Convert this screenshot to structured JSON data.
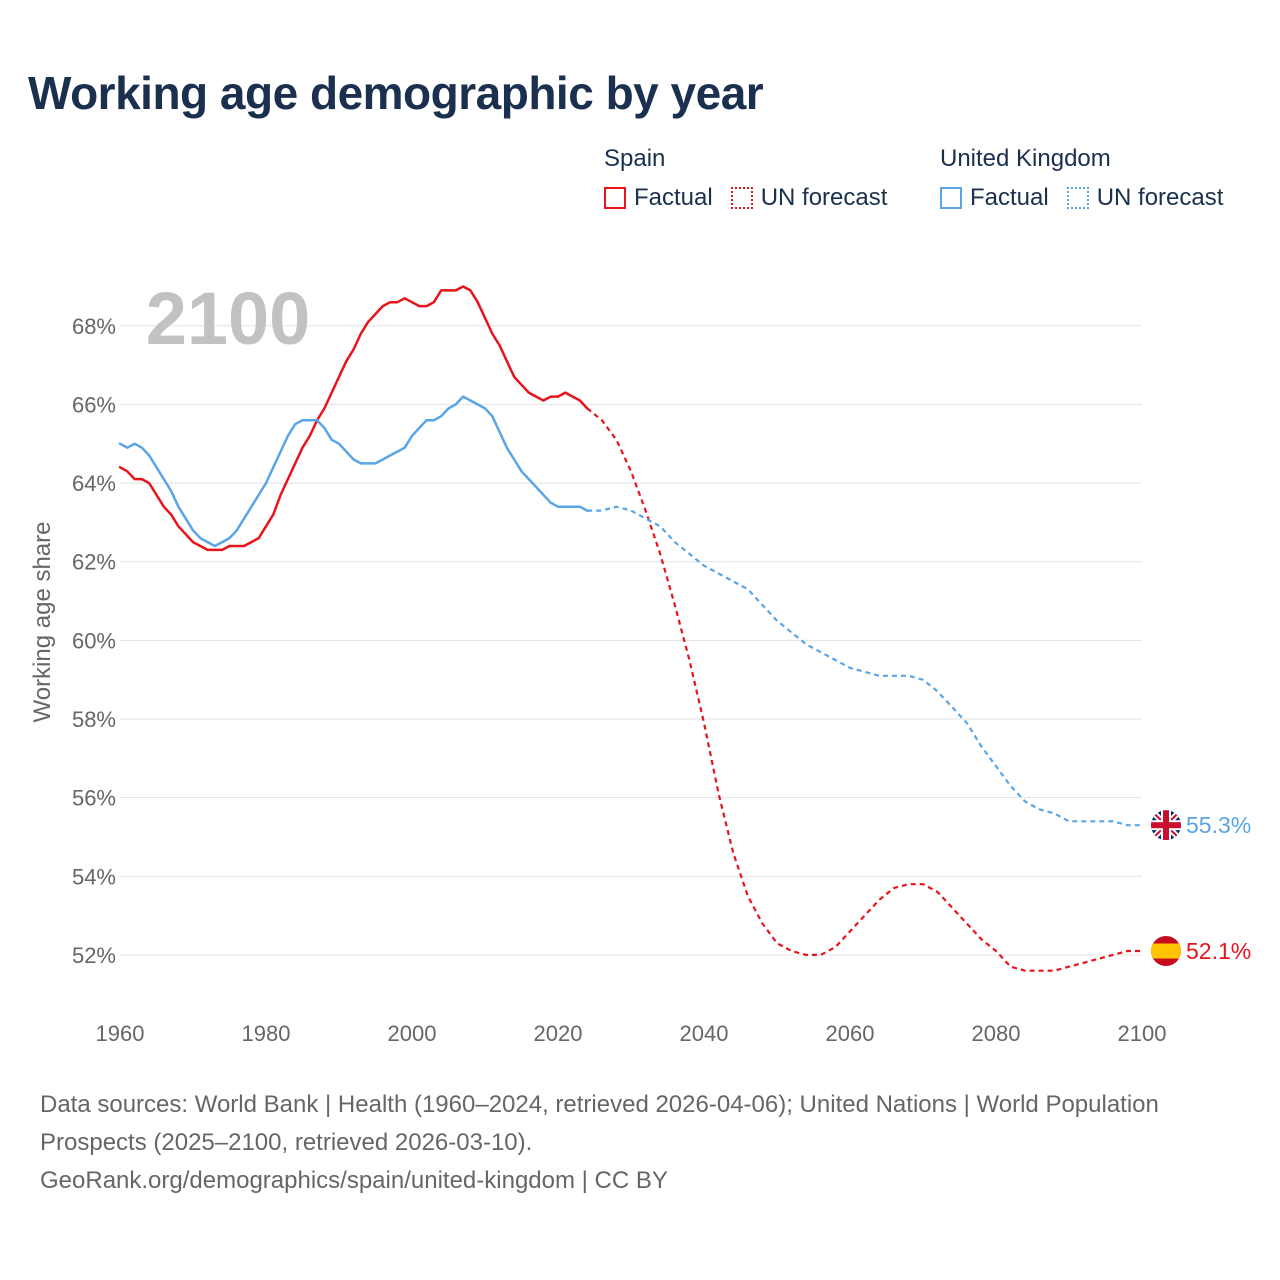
{
  "title": "Working age demographic by year",
  "year_overlay": "2100",
  "legend": {
    "spain": {
      "country": "Spain",
      "factual": "Factual",
      "forecast": "UN forecast",
      "color": "#e8141c"
    },
    "uk": {
      "country": "United Kingdom",
      "factual": "Factual",
      "forecast": "UN forecast",
      "color": "#5aa5e6"
    }
  },
  "footer": {
    "line1": "Data sources: World Bank | Health (1960–2024, retrieved 2026-04-06); United Nations | World Population Prospects (2025–2100, retrieved 2026-03-10).",
    "line2": "GeoRank.org/demographics/spain/united-kingdom | CC BY"
  },
  "chart_data": {
    "type": "line",
    "title": "Working age demographic by year",
    "ylabel": "Working age share",
    "xlabel": "",
    "xlim": [
      1960,
      2100
    ],
    "ylim": [
      50.6,
      69.8
    ],
    "x_ticks": [
      1960,
      1980,
      2000,
      2020,
      2040,
      2060,
      2080,
      2100
    ],
    "x_tick_labels": [
      "1960",
      "1980",
      "2000",
      "2020",
      "2040",
      "2060",
      "2080",
      "2100"
    ],
    "y_ticks": [
      52,
      54,
      56,
      58,
      60,
      62,
      64,
      66,
      68
    ],
    "y_tick_labels": [
      "52%",
      "54%",
      "56%",
      "58%",
      "60%",
      "62%",
      "64%",
      "66%",
      "68%"
    ],
    "grid": true,
    "series": [
      {
        "name": "Spain",
        "flag": "spain-flag",
        "color": "#e8141c",
        "end_label": "52.1%",
        "factual": {
          "x": [
            1960,
            1961,
            1962,
            1963,
            1964,
            1965,
            1966,
            1967,
            1968,
            1969,
            1970,
            1971,
            1972,
            1973,
            1974,
            1975,
            1976,
            1977,
            1978,
            1979,
            1980,
            1981,
            1982,
            1983,
            1984,
            1985,
            1986,
            1987,
            1988,
            1989,
            1990,
            1991,
            1992,
            1993,
            1994,
            1995,
            1996,
            1997,
            1998,
            1999,
            2000,
            2001,
            2002,
            2003,
            2004,
            2005,
            2006,
            2007,
            2008,
            2009,
            2010,
            2011,
            2012,
            2013,
            2014,
            2015,
            2016,
            2017,
            2018,
            2019,
            2020,
            2021,
            2022,
            2023,
            2024
          ],
          "y": [
            64.4,
            64.3,
            64.1,
            64.1,
            64.0,
            63.7,
            63.4,
            63.2,
            62.9,
            62.7,
            62.5,
            62.4,
            62.3,
            62.3,
            62.3,
            62.4,
            62.4,
            62.4,
            62.5,
            62.6,
            62.9,
            63.2,
            63.7,
            64.1,
            64.5,
            64.9,
            65.2,
            65.6,
            65.9,
            66.3,
            66.7,
            67.1,
            67.4,
            67.8,
            68.1,
            68.3,
            68.5,
            68.6,
            68.6,
            68.7,
            68.6,
            68.5,
            68.5,
            68.6,
            68.9,
            68.9,
            68.9,
            69.0,
            68.9,
            68.6,
            68.2,
            67.8,
            67.5,
            67.1,
            66.7,
            66.5,
            66.3,
            66.2,
            66.1,
            66.2,
            66.2,
            66.3,
            66.2,
            66.1,
            65.9
          ]
        },
        "forecast": {
          "x": [
            2024,
            2026,
            2028,
            2030,
            2032,
            2034,
            2036,
            2038,
            2040,
            2042,
            2044,
            2046,
            2048,
            2050,
            2052,
            2054,
            2056,
            2058,
            2060,
            2062,
            2064,
            2066,
            2068,
            2070,
            2072,
            2074,
            2076,
            2078,
            2080,
            2082,
            2084,
            2086,
            2088,
            2090,
            2092,
            2094,
            2096,
            2098,
            2100
          ],
          "y": [
            65.9,
            65.6,
            65.1,
            64.3,
            63.3,
            62.2,
            60.9,
            59.5,
            57.9,
            56.1,
            54.6,
            53.5,
            52.8,
            52.3,
            52.1,
            52.0,
            52.0,
            52.2,
            52.6,
            53.0,
            53.4,
            53.7,
            53.8,
            53.8,
            53.6,
            53.2,
            52.8,
            52.4,
            52.1,
            51.7,
            51.6,
            51.6,
            51.6,
            51.7,
            51.8,
            51.9,
            52.0,
            52.1,
            52.1
          ]
        }
      },
      {
        "name": "United Kingdom",
        "flag": "uk-flag",
        "color": "#5aa5e6",
        "end_label": "55.3%",
        "factual": {
          "x": [
            1960,
            1961,
            1962,
            1963,
            1964,
            1965,
            1966,
            1967,
            1968,
            1969,
            1970,
            1971,
            1972,
            1973,
            1974,
            1975,
            1976,
            1977,
            1978,
            1979,
            1980,
            1981,
            1982,
            1983,
            1984,
            1985,
            1986,
            1987,
            1988,
            1989,
            1990,
            1991,
            1992,
            1993,
            1994,
            1995,
            1996,
            1997,
            1998,
            1999,
            2000,
            2001,
            2002,
            2003,
            2004,
            2005,
            2006,
            2007,
            2008,
            2009,
            2010,
            2011,
            2012,
            2013,
            2014,
            2015,
            2016,
            2017,
            2018,
            2019,
            2020,
            2021,
            2022,
            2023,
            2024
          ],
          "y": [
            65.0,
            64.9,
            65.0,
            64.9,
            64.7,
            64.4,
            64.1,
            63.8,
            63.4,
            63.1,
            62.8,
            62.6,
            62.5,
            62.4,
            62.5,
            62.6,
            62.8,
            63.1,
            63.4,
            63.7,
            64.0,
            64.4,
            64.8,
            65.2,
            65.5,
            65.6,
            65.6,
            65.6,
            65.4,
            65.1,
            65.0,
            64.8,
            64.6,
            64.5,
            64.5,
            64.5,
            64.6,
            64.7,
            64.8,
            64.9,
            65.2,
            65.4,
            65.6,
            65.6,
            65.7,
            65.9,
            66.0,
            66.2,
            66.1,
            66.0,
            65.9,
            65.7,
            65.3,
            64.9,
            64.6,
            64.3,
            64.1,
            63.9,
            63.7,
            63.5,
            63.4,
            63.4,
            63.4,
            63.4,
            63.3
          ]
        },
        "forecast": {
          "x": [
            2024,
            2026,
            2028,
            2030,
            2032,
            2034,
            2036,
            2038,
            2040,
            2042,
            2044,
            2046,
            2048,
            2050,
            2052,
            2054,
            2056,
            2058,
            2060,
            2062,
            2064,
            2066,
            2068,
            2070,
            2072,
            2074,
            2076,
            2078,
            2080,
            2082,
            2084,
            2086,
            2088,
            2090,
            2092,
            2094,
            2096,
            2098,
            2100
          ],
          "y": [
            63.3,
            63.3,
            63.4,
            63.3,
            63.1,
            62.9,
            62.5,
            62.2,
            61.9,
            61.7,
            61.5,
            61.3,
            60.9,
            60.5,
            60.2,
            59.9,
            59.7,
            59.5,
            59.3,
            59.2,
            59.1,
            59.1,
            59.1,
            59.0,
            58.7,
            58.3,
            57.9,
            57.3,
            56.8,
            56.3,
            55.9,
            55.7,
            55.6,
            55.4,
            55.4,
            55.4,
            55.4,
            55.3,
            55.3
          ]
        }
      }
    ]
  }
}
